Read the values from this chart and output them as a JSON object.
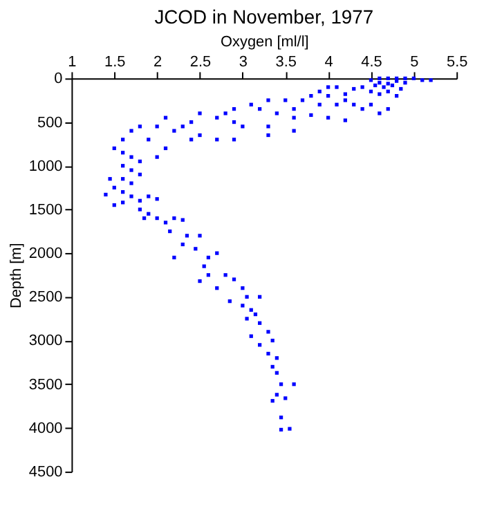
{
  "chart_data": {
    "type": "scatter",
    "title": "JCOD in November, 1977",
    "xlabel": "Oxygen [ml/l]",
    "ylabel": "Depth [m]",
    "x": [
      4.6,
      4.7,
      4.8,
      4.9,
      5.0,
      5.1,
      5.2,
      4.5,
      4.6,
      4.7,
      4.8,
      4.9,
      4.55,
      4.65,
      4.75,
      4.85,
      4.5,
      4.6,
      4.7,
      4.8,
      4.4,
      4.3,
      4.2,
      4.1,
      4.0,
      4.0,
      4.2,
      4.3,
      4.4,
      4.5,
      4.6,
      4.7,
      4.1,
      3.9,
      3.8,
      3.7,
      3.9,
      3.6,
      3.5,
      3.3,
      3.2,
      3.4,
      3.6,
      3.8,
      4.0,
      4.2,
      3.1,
      2.9,
      2.8,
      2.7,
      2.9,
      3.0,
      3.3,
      3.6,
      2.5,
      2.4,
      2.3,
      2.5,
      2.7,
      2.9,
      3.3,
      2.1,
      2.0,
      2.2,
      2.4,
      2.1,
      2.0,
      1.9,
      1.8,
      1.7,
      1.6,
      1.5,
      1.6,
      1.7,
      1.8,
      1.6,
      1.7,
      1.6,
      1.7,
      1.8,
      1.45,
      1.5,
      1.4,
      1.6,
      1.7,
      1.8,
      1.9,
      2.0,
      1.5,
      1.6,
      1.8,
      1.9,
      2.0,
      2.1,
      2.2,
      1.85,
      2.3,
      2.15,
      2.35,
      2.3,
      2.5,
      2.45,
      2.2,
      2.6,
      2.7,
      2.55,
      2.6,
      2.8,
      2.5,
      2.7,
      2.9,
      3.0,
      3.05,
      2.85,
      3.0,
      3.1,
      3.2,
      3.05,
      3.15,
      3.2,
      3.3,
      3.1,
      3.35,
      3.2,
      3.3,
      3.4,
      3.35,
      3.4,
      3.45,
      3.6,
      3.4,
      3.5,
      3.35,
      3.45,
      3.45,
      3.55
    ],
    "values": [
      0,
      0,
      0,
      0,
      0,
      20,
      20,
      20,
      50,
      60,
      30,
      50,
      80,
      100,
      80,
      120,
      150,
      180,
      150,
      200,
      100,
      120,
      180,
      100,
      100,
      200,
      250,
      300,
      350,
      300,
      400,
      350,
      300,
      150,
      200,
      250,
      300,
      350,
      250,
      250,
      350,
      400,
      450,
      420,
      450,
      480,
      300,
      350,
      400,
      450,
      500,
      550,
      550,
      600,
      400,
      500,
      550,
      650,
      700,
      700,
      650,
      450,
      550,
      600,
      700,
      800,
      900,
      700,
      550,
      600,
      700,
      800,
      850,
      900,
      950,
      1000,
      1050,
      1150,
      1200,
      1100,
      1150,
      1250,
      1330,
      1300,
      1350,
      1400,
      1350,
      1380,
      1450,
      1420,
      1500,
      1550,
      1600,
      1650,
      1600,
      1600,
      1620,
      1750,
      1800,
      1900,
      1800,
      1950,
      2050,
      2050,
      2000,
      2150,
      2250,
      2250,
      2320,
      2400,
      2300,
      2400,
      2500,
      2550,
      2600,
      2650,
      2500,
      2750,
      2700,
      2800,
      2900,
      2950,
      3000,
      3050,
      3150,
      3200,
      3300,
      3370,
      3500,
      3500,
      3620,
      3660,
      3690,
      3880,
      4020,
      4010
    ],
    "color": "#0000ff",
    "marker": "square",
    "xlim": [
      1,
      5.5
    ],
    "xticks": [
      1,
      1.5,
      2,
      2.5,
      3,
      3.5,
      4,
      4.5,
      5,
      5.5
    ],
    "ylim": [
      4500,
      0
    ],
    "yticks": [
      0,
      500,
      1000,
      1500,
      2000,
      2500,
      3000,
      3500,
      4000,
      4500
    ],
    "grid": false
  }
}
